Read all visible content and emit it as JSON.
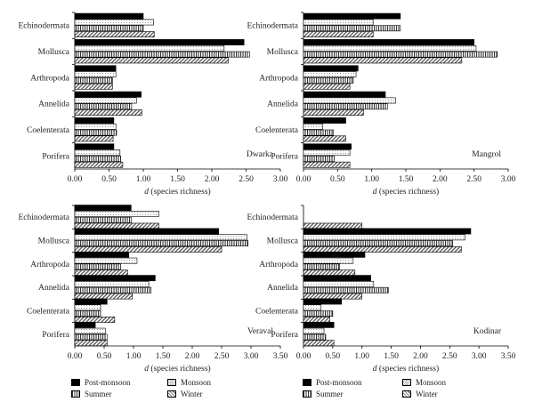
{
  "chart_data": [
    {
      "type": "bar",
      "orientation": "horizontal",
      "annotation": "Dwarka",
      "categories": [
        "Echinodermata",
        "Mollusca",
        "Arthropoda",
        "Annelida",
        "Coelenterata",
        "Porifera"
      ],
      "series": [
        {
          "name": "Post-monsoon",
          "values": [
            1.0,
            2.47,
            0.6,
            0.97,
            0.57,
            0.57
          ]
        },
        {
          "name": "Monsoon",
          "values": [
            1.15,
            2.18,
            0.6,
            0.9,
            0.6,
            0.66
          ]
        },
        {
          "name": "Summer",
          "values": [
            1.0,
            2.55,
            0.55,
            0.83,
            0.61,
            0.67
          ]
        },
        {
          "name": "Winter",
          "values": [
            1.16,
            2.24,
            0.55,
            0.98,
            0.56,
            0.7
          ]
        }
      ],
      "xlabel": "d (species richness)",
      "xlim": [
        0,
        3.0
      ],
      "xticks": [
        "0.00",
        "0.50",
        "1.00",
        "1.50",
        "2.00",
        "2.50",
        "3.00"
      ]
    },
    {
      "type": "bar",
      "orientation": "horizontal",
      "annotation": "Mangrol",
      "categories": [
        "Echinodermata",
        "Mollusca",
        "Arthropoda",
        "Annelida",
        "Coelenterata",
        "Porifera"
      ],
      "series": [
        {
          "name": "Post-monsoon",
          "values": [
            1.42,
            2.5,
            0.8,
            1.2,
            0.62,
            0.7
          ]
        },
        {
          "name": "Monsoon",
          "values": [
            1.02,
            2.53,
            0.77,
            1.35,
            0.28,
            0.68
          ]
        },
        {
          "name": "Summer",
          "values": [
            1.42,
            2.84,
            0.73,
            1.23,
            0.44,
            0.45
          ]
        },
        {
          "name": "Winter",
          "values": [
            1.02,
            2.32,
            0.68,
            0.88,
            0.62,
            0.68
          ]
        }
      ],
      "xlabel": "d (species richness)",
      "xlim": [
        0,
        3.0
      ],
      "xticks": [
        "0.00",
        "0.50",
        "1.00",
        "1.50",
        "2.00",
        "2.50",
        "3.00"
      ]
    },
    {
      "type": "bar",
      "orientation": "horizontal",
      "annotation": "Veraval",
      "categories": [
        "Echinodermata",
        "Mollusca",
        "Arthropoda",
        "Annelida",
        "Coelenterata",
        "Porifera"
      ],
      "series": [
        {
          "name": "Post-monsoon",
          "values": [
            0.96,
            2.45,
            0.92,
            1.37,
            0.55,
            0.35
          ]
        },
        {
          "name": "Monsoon",
          "values": [
            1.43,
            2.93,
            1.06,
            1.26,
            0.44,
            0.52
          ]
        },
        {
          "name": "Summer",
          "values": [
            0.96,
            2.95,
            0.78,
            1.3,
            0.44,
            0.55
          ]
        },
        {
          "name": "Winter",
          "values": [
            1.43,
            2.5,
            0.9,
            0.98,
            0.68,
            0.55
          ]
        }
      ],
      "xlabel": "d (species richness)",
      "xlim": [
        0,
        3.5
      ],
      "xticks": [
        "0.00",
        "0.50",
        "1.00",
        "1.50",
        "2.00",
        "2.50",
        "3.00",
        "3.50"
      ]
    },
    {
      "type": "bar",
      "orientation": "horizontal",
      "annotation": "Kodinar",
      "categories": [
        "Echinodermata",
        "Mollusca",
        "Arthropoda",
        "Annelida",
        "Coelenterata",
        "Porifera"
      ],
      "series": [
        {
          "name": "Post-monsoon",
          "values": [
            0,
            2.86,
            1.05,
            1.15,
            0.65,
            0.52
          ]
        },
        {
          "name": "Monsoon",
          "values": [
            0,
            2.76,
            0.85,
            1.2,
            0.3,
            0.35
          ]
        },
        {
          "name": "Summer",
          "values": [
            0,
            2.55,
            0.62,
            1.45,
            0.5,
            0.38
          ]
        },
        {
          "name": "Winter",
          "values": [
            1.0,
            2.7,
            0.88,
            1.0,
            0.45,
            0.52
          ]
        }
      ],
      "xlabel": "d (species richness)",
      "xlim": [
        0,
        3.5
      ],
      "xticks": [
        "0.00",
        "0.50",
        "1.00",
        "1.50",
        "2.00",
        "2.50",
        "3.00",
        "3.50"
      ]
    }
  ],
  "legend_items": [
    "Post-monsoon",
    "Monsoon",
    "Summer",
    "Winter"
  ]
}
